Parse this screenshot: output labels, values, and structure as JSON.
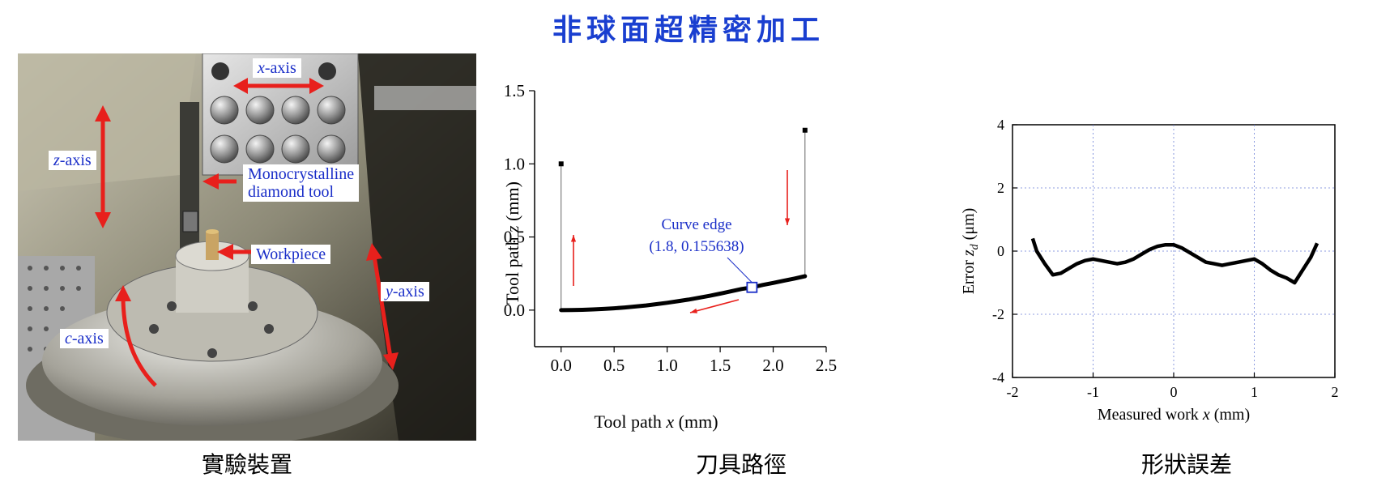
{
  "title": "非球面超精密加工",
  "captions": {
    "photo": "實驗裝置",
    "toolpath": "刀具路徑",
    "error": "形狀誤差"
  },
  "photo_labels": {
    "x_axis": {
      "var": "x",
      "suffix": "-axis"
    },
    "z_axis": {
      "var": "z",
      "suffix": "-axis"
    },
    "y_axis": {
      "var": "y",
      "suffix": "-axis"
    },
    "c_axis": {
      "var": "c",
      "suffix": "-axis"
    },
    "tool_line1": "Monocrystalline",
    "tool_line2": "diamond tool",
    "workpiece": "Workpiece"
  },
  "colors": {
    "title": "#1a3fd0",
    "arrow": "#e8201c",
    "label_text": "#1a2ec8",
    "marker": "#1a2ec8"
  },
  "chart_data": [
    {
      "type": "line",
      "xlabel": {
        "text": "Tool path ",
        "var": "x",
        "unit": " (mm)"
      },
      "ylabel": {
        "text": "Tool path ",
        "var": "z",
        "unit": " (mm)"
      },
      "xlim": [
        -0.25,
        2.5
      ],
      "ylim": [
        -0.25,
        1.5
      ],
      "xticks": [
        "0.0",
        "0.5",
        "1.0",
        "1.5",
        "2.0",
        "2.5"
      ],
      "yticks": [
        "0.0",
        "0.5",
        "1.0",
        "1.5"
      ],
      "series": [
        {
          "x": [
            0,
            0.1,
            0.2,
            0.3,
            0.4,
            0.5,
            0.6,
            0.7,
            0.8,
            0.9,
            1.0,
            1.1,
            1.2,
            1.3,
            1.4,
            1.5,
            1.6,
            1.7,
            1.8,
            1.9,
            2.0,
            2.1,
            2.2,
            2.3
          ],
          "y": [
            0,
            0.0005,
            0.002,
            0.0045,
            0.008,
            0.0125,
            0.018,
            0.0245,
            0.032,
            0.0405,
            0.05,
            0.0605,
            0.072,
            0.0845,
            0.098,
            0.1125,
            0.128,
            0.1445,
            0.155638,
            0.172,
            0.186,
            0.201,
            0.216,
            0.232
          ]
        }
      ],
      "retract_lines": [
        {
          "x": [
            0,
            0
          ],
          "y": [
            0,
            1.0
          ]
        },
        {
          "x": [
            2.3,
            2.3
          ],
          "y": [
            0.232,
            1.23
          ]
        }
      ],
      "annotation": {
        "label": "Curve edge",
        "coords": "(1.8,  0.155638)",
        "x": 1.8,
        "y": 0.155638
      }
    },
    {
      "type": "line",
      "xlabel": {
        "text": "Measured work ",
        "var": "x",
        "unit": " (mm)"
      },
      "ylabel": {
        "text": "Error ",
        "var": "z",
        "sub": "d",
        "unit": " (μm)"
      },
      "xlim": [
        -2,
        2
      ],
      "ylim": [
        -4,
        4
      ],
      "xticks": [
        "-2",
        "-1",
        "0",
        "1",
        "2"
      ],
      "yticks": [
        "-4",
        "-2",
        "0",
        "2",
        "4"
      ],
      "grid": true,
      "series": [
        {
          "x": [
            -1.75,
            -1.7,
            -1.6,
            -1.5,
            -1.4,
            -1.3,
            -1.2,
            -1.1,
            -1.0,
            -0.9,
            -0.8,
            -0.7,
            -0.6,
            -0.5,
            -0.4,
            -0.3,
            -0.2,
            -0.1,
            0.0,
            0.1,
            0.2,
            0.3,
            0.4,
            0.5,
            0.6,
            0.7,
            0.8,
            0.9,
            1.0,
            1.1,
            1.2,
            1.3,
            1.4,
            1.5,
            1.6,
            1.7,
            1.78
          ],
          "y": [
            0.4,
            0.0,
            -0.4,
            -0.75,
            -0.7,
            -0.55,
            -0.4,
            -0.3,
            -0.25,
            -0.3,
            -0.35,
            -0.4,
            -0.35,
            -0.25,
            -0.1,
            0.05,
            0.15,
            0.2,
            0.2,
            0.1,
            -0.05,
            -0.2,
            -0.35,
            -0.4,
            -0.45,
            -0.4,
            -0.35,
            -0.3,
            -0.25,
            -0.4,
            -0.6,
            -0.75,
            -0.85,
            -1.0,
            -0.6,
            -0.2,
            0.25
          ]
        }
      ]
    }
  ]
}
